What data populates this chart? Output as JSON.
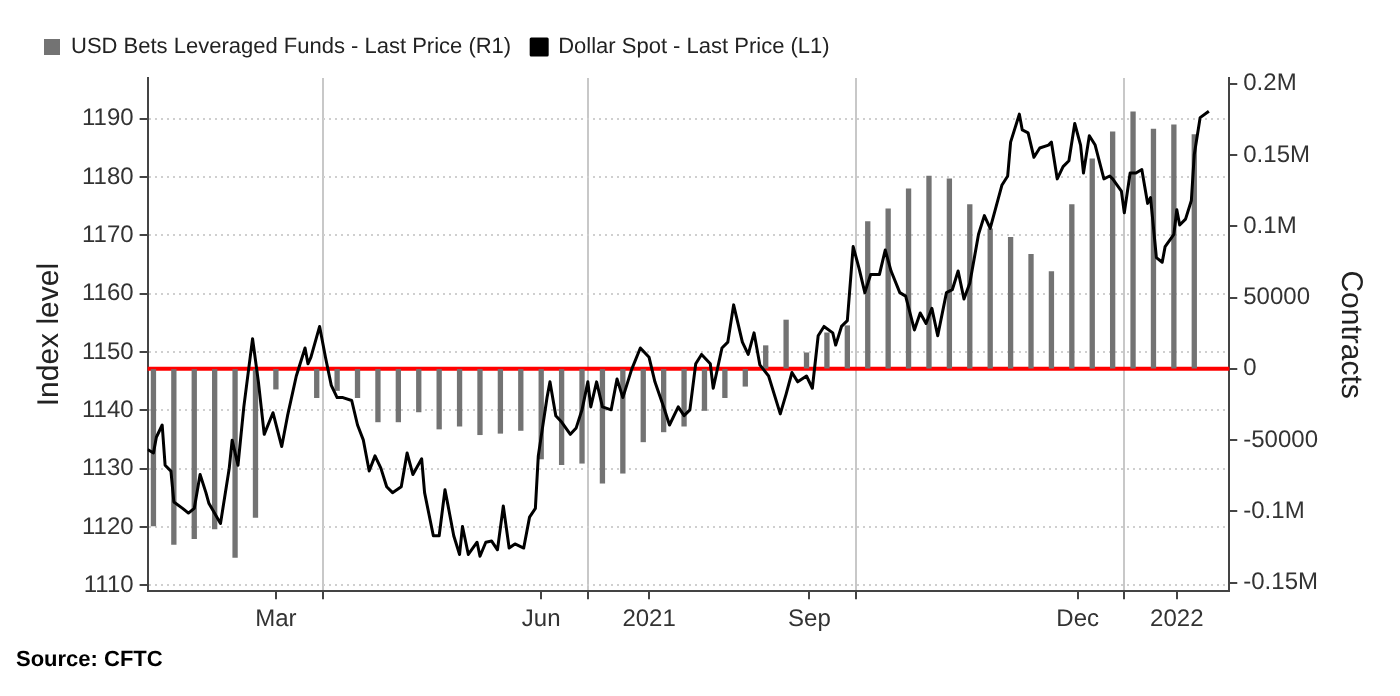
{
  "chart_data": {
    "type": "line",
    "ylabel": "Index level",
    "y2label": "Contracts",
    "xlim": [
      "2021-01-31",
      "2022-02-06"
    ],
    "xticks": [
      {
        "value": "2021-03-16",
        "label": "Mar"
      },
      {
        "value": "2021-04-01",
        "label": null
      },
      {
        "value": "2021-06-15",
        "label": "Jun"
      },
      {
        "value": "2021-07-01",
        "label": null
      },
      {
        "value": "2021-07-22",
        "label": "2021"
      },
      {
        "value": "2021-09-15",
        "label": "Sep"
      },
      {
        "value": "2021-10-01",
        "label": null
      },
      {
        "value": "2021-12-16",
        "label": "Dec"
      },
      {
        "value": "2022-01-01",
        "label": null
      },
      {
        "value": "2022-01-19",
        "label": "2022"
      }
    ],
    "ylim": [
      1109,
      1197
    ],
    "yticks": [
      1110,
      1120,
      1130,
      1140,
      1150,
      1160,
      1170,
      1180,
      1190
    ],
    "y2lim": [
      -156000,
      204000
    ],
    "y2ticks": [
      {
        "value": -150000,
        "label": "-0.15M"
      },
      {
        "value": -100000,
        "label": "-0.1M"
      },
      -50000,
      0,
      50000,
      {
        "value": 100000,
        "label": "0.1M"
      },
      {
        "value": 150000,
        "label": "0.15M"
      },
      {
        "value": 200000,
        "label": "0.2M"
      }
    ],
    "grid": true,
    "legend": "top left",
    "marker": "none",
    "ref_lines": [
      {
        "axis": "y2",
        "value": 0,
        "color": "#ff0000"
      }
    ],
    "annotations": [
      "Source: CFTC"
    ],
    "series": [
      {
        "name": "USD Bets Leveraged Funds - Last Price (R1)",
        "type": "bar",
        "axis": "y2",
        "color": "#737373",
        "x": [
          "2021-02-02",
          "2021-02-09",
          "2021-02-16",
          "2021-02-23",
          "2021-03-02",
          "2021-03-09",
          "2021-03-16",
          "2021-03-23",
          "2021-03-30",
          "2021-04-06",
          "2021-04-13",
          "2021-04-20",
          "2021-04-27",
          "2021-05-04",
          "2021-05-11",
          "2021-05-18",
          "2021-05-25",
          "2021-06-01",
          "2021-06-08",
          "2021-06-15",
          "2021-06-22",
          "2021-06-29",
          "2021-07-06",
          "2021-07-13",
          "2021-07-20",
          "2021-07-27",
          "2021-08-03",
          "2021-08-10",
          "2021-08-17",
          "2021-08-24",
          "2021-08-31",
          "2021-09-07",
          "2021-09-14",
          "2021-09-21",
          "2021-09-28",
          "2021-10-05",
          "2021-10-12",
          "2021-10-19",
          "2021-10-26",
          "2021-11-02",
          "2021-11-09",
          "2021-11-16",
          "2021-11-23",
          "2021-11-30",
          "2021-12-07",
          "2021-12-14",
          "2021-12-21",
          "2021-12-28",
          "2022-01-04",
          "2022-01-11",
          "2022-01-18",
          "2022-01-25"
        ],
        "values": [
          -110000,
          -123000,
          -119000,
          -112000,
          -132000,
          -104000,
          -14000,
          null,
          -20000,
          -15000,
          -20000,
          -37000,
          -37000,
          -30000,
          -42000,
          -40000,
          -46000,
          -45000,
          -43000,
          -63000,
          -67000,
          -66000,
          -80000,
          -73000,
          -51000,
          -44000,
          -40000,
          -29000,
          -20000,
          -12000,
          16000,
          34000,
          11000,
          25000,
          30000,
          103000,
          112000,
          126000,
          135000,
          133000,
          115000,
          98000,
          92000,
          80000,
          68000,
          115000,
          147000,
          166000,
          180000,
          168000,
          171000,
          164000
        ]
      },
      {
        "name": "Dollar Spot - Last Price (L1)",
        "color": "#000000",
        "x": [
          "2021-01-31",
          "2021-02-02",
          "2021-02-03",
          "2021-02-05",
          "2021-02-06",
          "2021-02-08",
          "2021-02-09",
          "2021-02-12",
          "2021-02-14",
          "2021-02-16",
          "2021-02-18",
          "2021-02-20",
          "2021-02-21",
          "2021-02-25",
          "2021-02-28",
          "2021-03-01",
          "2021-03-03",
          "2021-03-05",
          "2021-03-08",
          "2021-03-10",
          "2021-03-12",
          "2021-03-15",
          "2021-03-18",
          "2021-03-20",
          "2021-03-23",
          "2021-03-26",
          "2021-03-27",
          "2021-03-28",
          "2021-03-31",
          "2021-04-02",
          "2021-04-04",
          "2021-04-06",
          "2021-04-08",
          "2021-04-11",
          "2021-04-13",
          "2021-04-15",
          "2021-04-17",
          "2021-04-19",
          "2021-04-21",
          "2021-04-23",
          "2021-04-25",
          "2021-04-28",
          "2021-04-30",
          "2021-05-02",
          "2021-05-05",
          "2021-05-06",
          "2021-05-09",
          "2021-05-11",
          "2021-05-13",
          "2021-05-14",
          "2021-05-16",
          "2021-05-18",
          "2021-05-19",
          "2021-05-21",
          "2021-05-24",
          "2021-05-25",
          "2021-05-27",
          "2021-05-29",
          "2021-05-31",
          "2021-06-02",
          "2021-06-04",
          "2021-06-06",
          "2021-06-09",
          "2021-06-11",
          "2021-06-13",
          "2021-06-14",
          "2021-06-17",
          "2021-06-18",
          "2021-06-20",
          "2021-06-22",
          "2021-06-25",
          "2021-06-27",
          "2021-06-29",
          "2021-07-01",
          "2021-07-02",
          "2021-07-04",
          "2021-07-06",
          "2021-07-09",
          "2021-07-11",
          "2021-07-13",
          "2021-07-16",
          "2021-07-19",
          "2021-07-22",
          "2021-07-24",
          "2021-07-27",
          "2021-07-29",
          "2021-08-01",
          "2021-08-03",
          "2021-08-05",
          "2021-08-07",
          "2021-08-09",
          "2021-08-12",
          "2021-08-13",
          "2021-08-16",
          "2021-08-18",
          "2021-08-20",
          "2021-08-23",
          "2021-08-25",
          "2021-08-27",
          "2021-08-29",
          "2021-09-01",
          "2021-09-05",
          "2021-09-07",
          "2021-09-09",
          "2021-09-11",
          "2021-09-14",
          "2021-09-16",
          "2021-09-18",
          "2021-09-20",
          "2021-09-23",
          "2021-09-24",
          "2021-09-26",
          "2021-09-28",
          "2021-09-30",
          "2021-10-02",
          "2021-10-04",
          "2021-10-06",
          "2021-10-09",
          "2021-10-11",
          "2021-10-13",
          "2021-10-16",
          "2021-10-18",
          "2021-10-21",
          "2021-10-23",
          "2021-10-25",
          "2021-10-27",
          "2021-10-29",
          "2021-11-01",
          "2021-11-03",
          "2021-11-05",
          "2021-11-07",
          "2021-11-09",
          "2021-11-12",
          "2021-11-14",
          "2021-11-16",
          "2021-11-18",
          "2021-11-20",
          "2021-11-22",
          "2021-11-23",
          "2021-11-26",
          "2021-11-27",
          "2021-11-29",
          "2021-12-01",
          "2021-12-03",
          "2021-12-06",
          "2021-12-07",
          "2021-12-09",
          "2021-12-11",
          "2021-12-13",
          "2021-12-15",
          "2021-12-17",
          "2021-12-18",
          "2021-12-20",
          "2021-12-22",
          "2021-12-25",
          "2021-12-27",
          "2021-12-28",
          "2021-12-31",
          "2022-01-01",
          "2022-01-03",
          "2022-01-05",
          "2022-01-07",
          "2022-01-09",
          "2022-01-10",
          "2022-01-12",
          "2022-01-14",
          "2022-01-15",
          "2022-01-18",
          "2022-01-19",
          "2022-01-20",
          "2022-01-22",
          "2022-01-24",
          "2022-01-25",
          "2022-01-27",
          "2022-01-30"
        ],
        "values": [
          1133.3,
          1132.7,
          1135.4,
          1137.5,
          1130.6,
          1129.6,
          1124.3,
          1123.2,
          1122.4,
          1123.2,
          1129.0,
          1125.9,
          1124.1,
          1120.6,
          1130.1,
          1134.9,
          1130.6,
          1140.6,
          1152.3,
          1144.9,
          1135.9,
          1139.6,
          1133.8,
          1139.1,
          1145.9,
          1150.7,
          1148.0,
          1149.1,
          1154.4,
          1149.1,
          1144.3,
          1142.2,
          1142.2,
          1141.7,
          1137.5,
          1134.9,
          1129.6,
          1132.2,
          1130.1,
          1126.9,
          1125.9,
          1126.9,
          1132.7,
          1129.0,
          1131.7,
          1125.9,
          1118.5,
          1118.5,
          1126.4,
          1123.8,
          1118.5,
          1115.3,
          1120.1,
          1115.3,
          1117.4,
          1115.0,
          1117.4,
          1117.6,
          1116.1,
          1123.6,
          1116.4,
          1117.1,
          1116.4,
          1121.7,
          1123.2,
          1132.2,
          1142.2,
          1144.9,
          1139.1,
          1138.0,
          1135.9,
          1137.0,
          1140.1,
          1144.9,
          1140.6,
          1144.9,
          1140.6,
          1140.1,
          1145.4,
          1142.2,
          1147.0,
          1150.7,
          1149.1,
          1144.9,
          1140.6,
          1137.5,
          1140.6,
          1139.1,
          1140.1,
          1148.0,
          1149.6,
          1148.0,
          1143.8,
          1150.7,
          1151.7,
          1158.1,
          1151.7,
          1149.6,
          1153.3,
          1147.8,
          1145.9,
          1139.4,
          1142.8,
          1146.5,
          1144.9,
          1145.9,
          1143.8,
          1152.8,
          1154.4,
          1153.3,
          1151.2,
          1154.4,
          1155.4,
          1168.1,
          1164.4,
          1160.2,
          1163.3,
          1163.3,
          1167.5,
          1163.9,
          1160.2,
          1159.6,
          1153.8,
          1156.7,
          1154.9,
          1157.5,
          1152.8,
          1160.2,
          1160.7,
          1163.9,
          1159.1,
          1161.8,
          1170.2,
          1173.4,
          1171.2,
          1174.9,
          1178.6,
          1180.2,
          1186.0,
          1190.8,
          1188.1,
          1187.6,
          1183.4,
          1185.0,
          1185.5,
          1186.0,
          1179.7,
          1181.8,
          1182.8,
          1189.2,
          1185.5,
          1180.7,
          1187.1,
          1185.5,
          1179.7,
          1180.2,
          1179.7,
          1177.6,
          1173.9,
          1180.7,
          1180.7,
          1181.3,
          1175.5,
          1176.5,
          1166.2,
          1165.4,
          1168.1,
          1170.2,
          1174.4,
          1171.8,
          1172.8,
          1176.0,
          1183.9,
          1190.2,
          1191.3
        ]
      }
    ]
  }
}
